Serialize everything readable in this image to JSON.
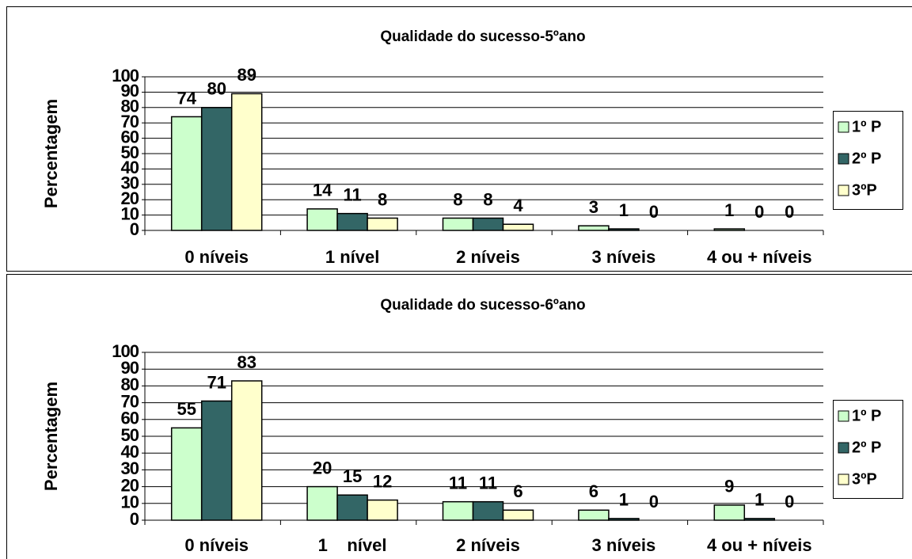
{
  "chart_data": [
    {
      "type": "bar",
      "title": "Qualidade do sucesso-5ºano",
      "y_label": "Percentagem",
      "categories": [
        "0 níveis",
        "1 nível",
        "2 níveis",
        "3 níveis",
        "4 ou + níveis"
      ],
      "series": [
        {
          "name": "1º P",
          "color": "#ccffcc",
          "values": [
            74,
            14,
            8,
            3,
            1
          ]
        },
        {
          "name": "2º P",
          "color": "#336666",
          "values": [
            80,
            11,
            8,
            1,
            0
          ]
        },
        {
          "name": "3ºP",
          "color": "#ffffcc",
          "values": [
            89,
            8,
            4,
            0,
            0
          ]
        }
      ],
      "ylim": [
        0,
        100
      ],
      "yticks": [
        0,
        10,
        20,
        30,
        40,
        50,
        60,
        70,
        80,
        90,
        100
      ],
      "grid": true,
      "legend": "right"
    },
    {
      "type": "bar",
      "title": "Qualidade do sucesso-6ºano",
      "y_label": "Percentagem",
      "categories": [
        "0 níveis",
        "1    nível",
        "2 níveis",
        "3 níveis",
        "4 ou + níveis"
      ],
      "series": [
        {
          "name": "1º P",
          "color": "#ccffcc",
          "values": [
            55,
            20,
            11,
            6,
            9
          ]
        },
        {
          "name": "2º P",
          "color": "#336666",
          "values": [
            71,
            15,
            11,
            1,
            1
          ]
        },
        {
          "name": "3ºP",
          "color": "#ffffcc",
          "values": [
            83,
            12,
            6,
            0,
            0
          ]
        }
      ],
      "ylim": [
        0,
        100
      ],
      "yticks": [
        0,
        10,
        20,
        30,
        40,
        50,
        60,
        70,
        80,
        90,
        100
      ],
      "grid": true,
      "legend": "right"
    }
  ]
}
